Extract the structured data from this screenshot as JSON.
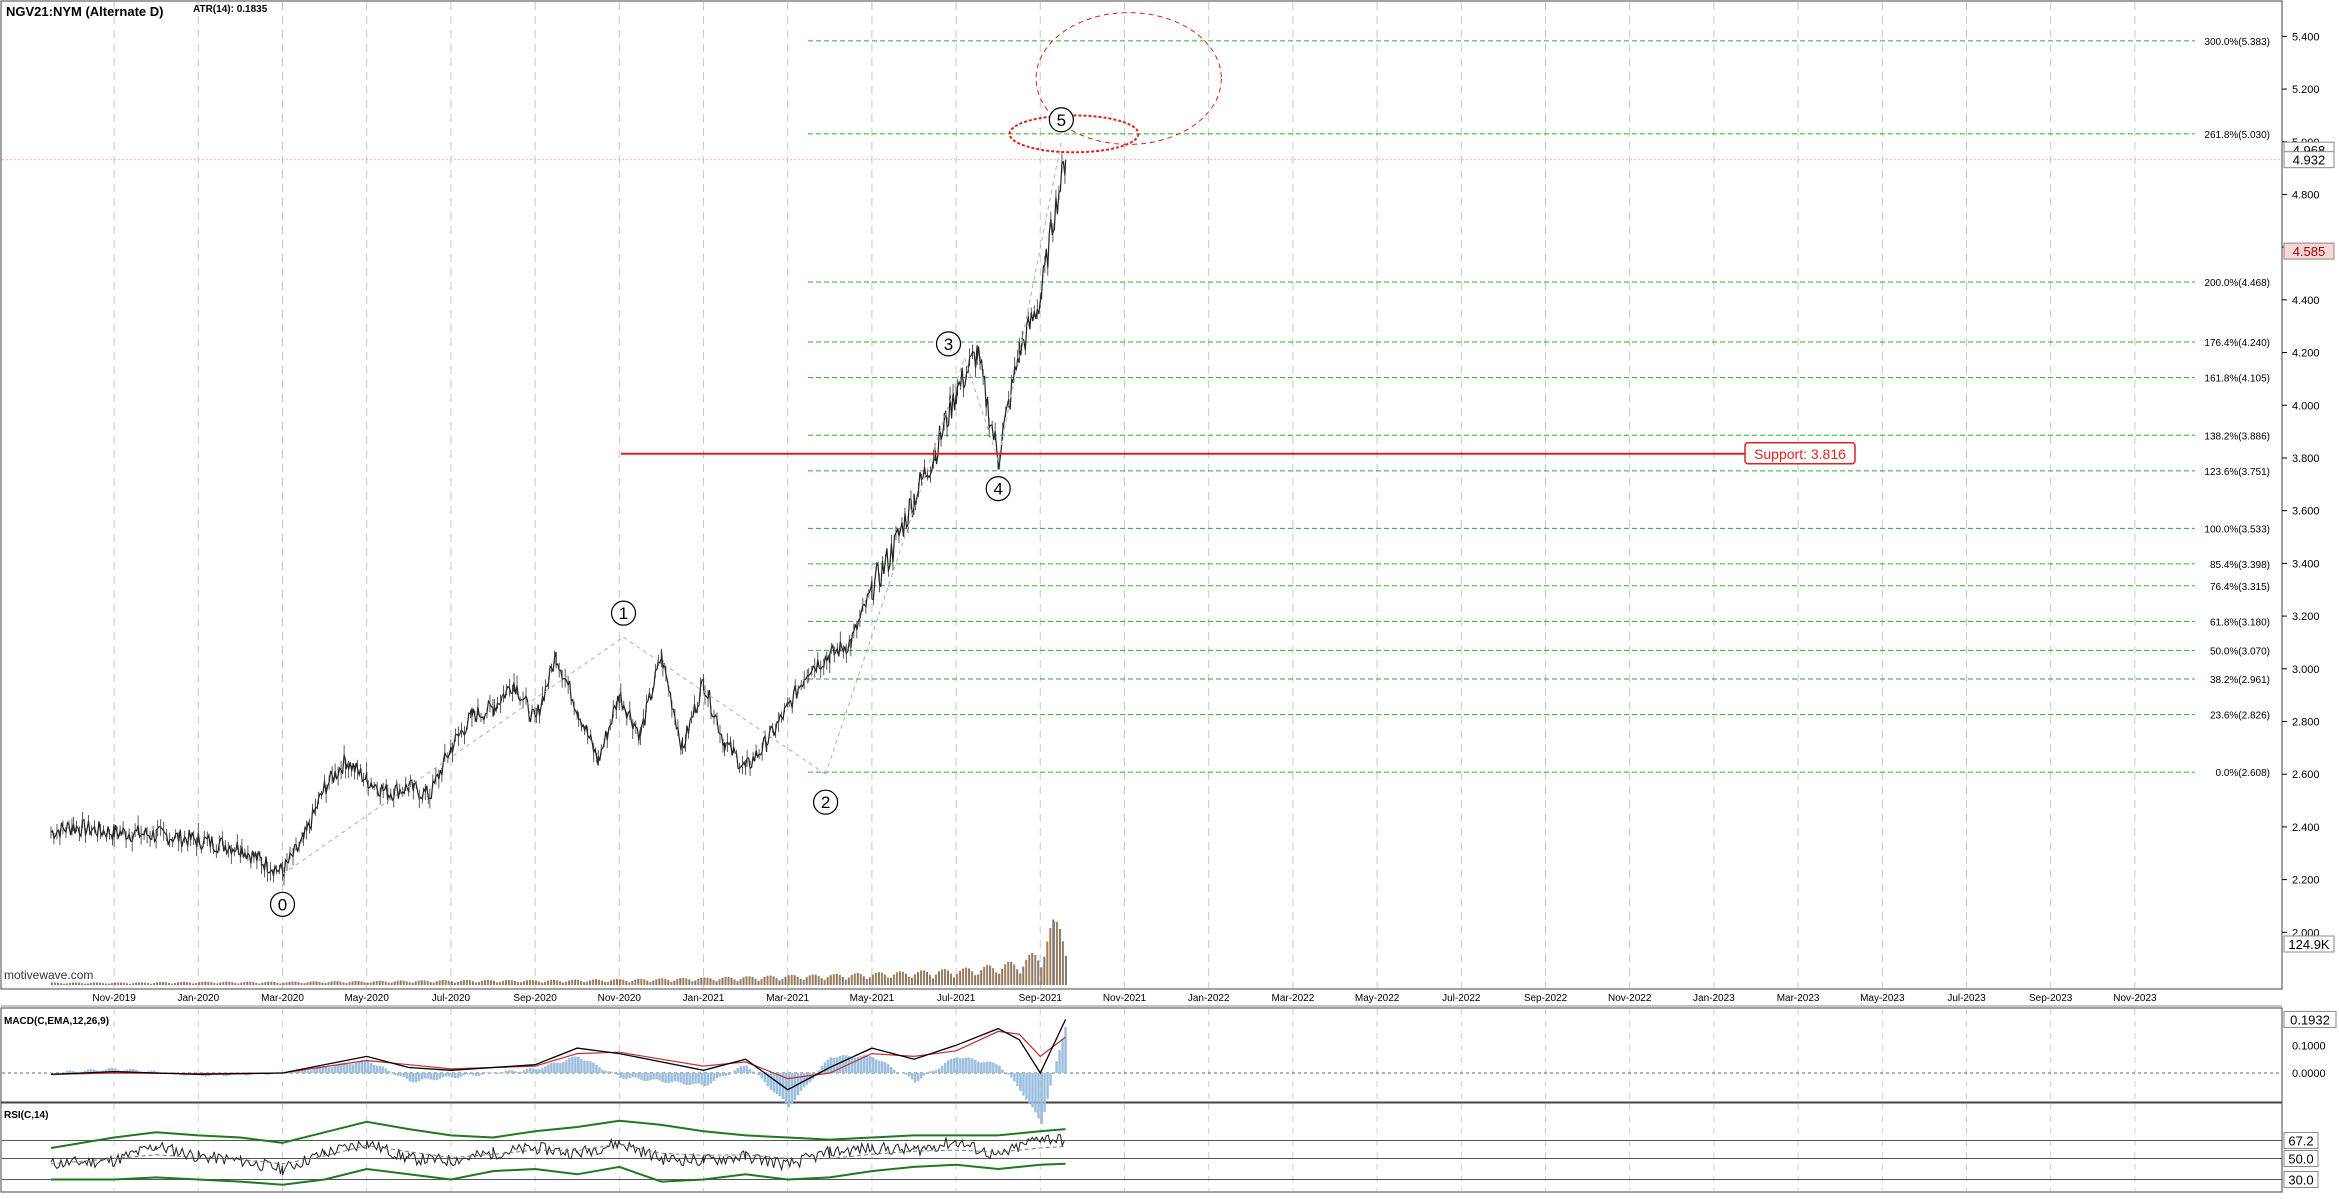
{
  "header": {
    "symbol": "NGV21:NYM (Alternate D)",
    "atr": "ATR(14): 0.1835"
  },
  "watermark": "motivewave.com",
  "chart_data": {
    "type": "line",
    "price_axis": {
      "ylim": [
        1.8,
        5.5
      ],
      "ticks": [
        "2.000",
        "2.200",
        "2.400",
        "2.600",
        "2.800",
        "3.000",
        "3.200",
        "3.400",
        "3.600",
        "3.800",
        "4.000",
        "4.200",
        "4.400",
        "4.600",
        "4.800",
        "5.000",
        "5.200",
        "5.400"
      ],
      "tick_values": [
        2.0,
        2.2,
        2.4,
        2.6,
        2.8,
        3.0,
        3.2,
        3.4,
        3.6,
        3.8,
        4.0,
        4.2,
        4.4,
        4.6,
        4.8,
        5.0,
        5.2,
        5.4
      ],
      "last_price": {
        "label": "4.932",
        "value": 4.932
      },
      "marker_price": {
        "label": "4.585",
        "value": 4.585
      },
      "high_label": {
        "label": "4.968",
        "value": 4.968
      },
      "volume_label": "124.9K"
    },
    "x_axis": {
      "months": [
        "Nov-2019",
        "Jan-2020",
        "Mar-2020",
        "May-2020",
        "Jul-2020",
        "Sep-2020",
        "Nov-2020",
        "Jan-2021",
        "Mar-2021",
        "May-2021",
        "Jul-2021",
        "Sep-2021",
        "Nov-2021",
        "Jan-2022",
        "Mar-2022",
        "May-2022",
        "Jul-2022",
        "Sep-2022",
        "Nov-2022",
        "Jan-2023",
        "Mar-2023",
        "May-2023",
        "Jul-2023",
        "Sep-2023",
        "Nov-2023"
      ],
      "month_index": [
        1,
        3,
        5,
        7,
        9,
        11,
        13,
        15,
        17,
        19,
        21,
        23,
        25,
        27,
        29,
        31,
        33,
        35,
        37,
        39,
        41,
        43,
        45,
        47,
        49
      ]
    },
    "price_series": {
      "name": "NGV21",
      "x": [
        -0.5,
        0,
        1,
        2,
        3,
        4,
        4.5,
        5,
        5.5,
        6,
        6.5,
        7,
        7.5,
        8,
        8.5,
        9,
        9.5,
        10,
        10.5,
        11,
        11.5,
        12,
        12.5,
        13,
        13.5,
        14,
        14.5,
        15,
        15.5,
        16,
        16.5,
        17,
        17.5,
        18,
        18.5,
        19,
        19.5,
        20,
        20.5,
        21,
        21.5,
        22,
        22.5,
        23,
        23.3,
        23.6
      ],
      "y": [
        2.38,
        2.4,
        2.38,
        2.37,
        2.35,
        2.32,
        2.27,
        2.23,
        2.35,
        2.55,
        2.65,
        2.58,
        2.53,
        2.55,
        2.52,
        2.7,
        2.82,
        2.85,
        2.95,
        2.8,
        3.05,
        2.85,
        2.65,
        2.9,
        2.75,
        3.05,
        2.7,
        2.95,
        2.72,
        2.62,
        2.72,
        2.85,
        3.0,
        3.05,
        3.1,
        3.3,
        3.45,
        3.65,
        3.82,
        4.05,
        4.2,
        3.8,
        4.2,
        4.4,
        4.7,
        4.932
      ]
    },
    "volume_series": {
      "x": [
        -0.5,
        1,
        3,
        5,
        7,
        9,
        11,
        13,
        15,
        17,
        18,
        19,
        20,
        21,
        21.5,
        22,
        22.5,
        23,
        23.3,
        23.6
      ],
      "v": [
        3,
        3,
        4,
        4,
        5,
        6,
        6,
        7,
        9,
        12,
        13,
        15,
        17,
        20,
        22,
        26,
        30,
        45,
        80,
        60
      ]
    },
    "fib_levels": [
      {
        "label": "300.0%(5.383)",
        "value": 5.383
      },
      {
        "label": "261.8%(5.030)",
        "value": 5.03
      },
      {
        "label": "200.0%(4.468)",
        "value": 4.468
      },
      {
        "label": "176.4%(4.240)",
        "value": 4.24
      },
      {
        "label": "161.8%(4.105)",
        "value": 4.105
      },
      {
        "label": "138.2%(3.886)",
        "value": 3.886
      },
      {
        "label": "123.6%(3.751)",
        "value": 3.751
      },
      {
        "label": "100.0%(3.533)",
        "value": 3.533
      },
      {
        "label": "85.4%(3.398)",
        "value": 3.398
      },
      {
        "label": "76.4%(3.315)",
        "value": 3.315
      },
      {
        "label": "61.8%(3.180)",
        "value": 3.18
      },
      {
        "label": "50.0%(3.070)",
        "value": 3.07
      },
      {
        "label": "38.2%(2.961)",
        "value": 2.961
      },
      {
        "label": "23.6%(2.826)",
        "value": 2.826
      },
      {
        "label": "0.0%(2.608)",
        "value": 2.608
      }
    ],
    "support": {
      "label": "Support: 3.816",
      "value": 3.816,
      "x_from": 13,
      "color": "#e02020"
    },
    "waves": [
      {
        "label": "0",
        "x": 5,
        "y": 2.22
      },
      {
        "label": "1",
        "x": 13.1,
        "y": 3.12
      },
      {
        "label": "2",
        "x": 17.9,
        "y": 2.6
      },
      {
        "label": "3",
        "x": 21.2,
        "y": 4.18
      },
      {
        "label": "4",
        "x": 22.0,
        "y": 3.79
      },
      {
        "label": "5",
        "x": 23.5,
        "y": 5.0
      }
    ],
    "target_zones": [
      {
        "cx": 23.8,
        "cy": 5.03,
        "rx": 1.7,
        "ry": 0.07
      },
      {
        "cx": 25.1,
        "cy": 5.24,
        "rx": 2.2,
        "ry": 0.25
      }
    ],
    "macd": {
      "label": "MACD(C,EMA,12,26,9)",
      "ylim": [
        -0.09,
        0.22
      ],
      "ticks": [
        "0.1000",
        "0.0000"
      ],
      "tick_values": [
        0.1,
        0.0
      ],
      "last": {
        "label": "0.1932",
        "value": 0.1932
      },
      "x": [
        -0.5,
        1,
        3,
        5,
        7,
        8,
        9,
        11,
        12,
        13,
        14,
        15,
        16,
        17,
        18,
        19,
        20,
        21,
        22,
        22.5,
        23,
        23.6
      ],
      "macd": [
        -0.005,
        0.005,
        -0.005,
        0.0,
        0.06,
        0.02,
        0.01,
        0.03,
        0.09,
        0.07,
        0.04,
        0.01,
        0.05,
        -0.06,
        0.02,
        0.09,
        0.05,
        0.1,
        0.16,
        0.12,
        0.0,
        0.1932
      ],
      "signal": [
        -0.005,
        0.0,
        -0.002,
        0.0,
        0.045,
        0.03,
        0.015,
        0.025,
        0.07,
        0.075,
        0.05,
        0.025,
        0.04,
        -0.02,
        0.0,
        0.07,
        0.06,
        0.08,
        0.15,
        0.14,
        0.06,
        0.13
      ]
    },
    "rsi": {
      "label": "RSI(C,14)",
      "ylim": [
        20,
        100
      ],
      "ticks": [
        "67.2",
        "50.0",
        "30.0"
      ],
      "tick_values": [
        67.2,
        50.0,
        30.0
      ],
      "x": [
        -0.5,
        1,
        2,
        3,
        4,
        5,
        6,
        7,
        8,
        9,
        10,
        11,
        12,
        13,
        14,
        15,
        16,
        17,
        18,
        19,
        20,
        21,
        22,
        23,
        23.6
      ],
      "rsi": [
        45,
        48,
        62,
        52,
        48,
        40,
        55,
        65,
        50,
        48,
        55,
        60,
        55,
        65,
        50,
        48,
        52,
        44,
        56,
        60,
        58,
        66,
        52,
        70,
        67.2
      ],
      "upper": [
        60,
        70,
        75,
        72,
        70,
        65,
        75,
        85,
        78,
        72,
        70,
        76,
        80,
        86,
        82,
        76,
        72,
        70,
        68,
        70,
        72,
        72,
        72,
        76,
        78
      ],
      "lower": [
        30,
        30,
        32,
        30,
        28,
        25,
        30,
        40,
        35,
        30,
        38,
        40,
        35,
        42,
        28,
        30,
        35,
        30,
        32,
        38,
        42,
        44,
        40,
        44,
        45
      ]
    }
  }
}
